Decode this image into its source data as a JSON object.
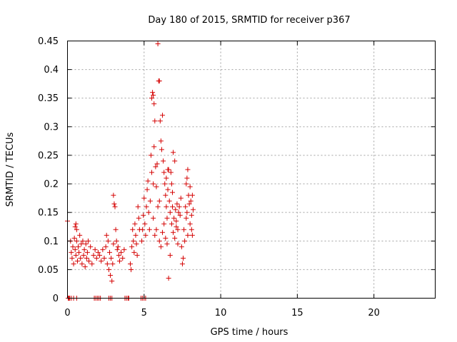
{
  "chart_data": {
    "type": "scatter",
    "title": "Day 180 of 2015, SRMTID for receiver p367",
    "xlabel": "GPS time / hours",
    "ylabel": "SRMTID / TECUs",
    "xlim": [
      0,
      24
    ],
    "ylim": [
      0,
      0.45
    ],
    "xticks": [
      0,
      5,
      10,
      15,
      20
    ],
    "xtick_labels": [
      "0",
      "5",
      "10",
      "15",
      "20"
    ],
    "yticks": [
      0,
      0.05,
      0.1,
      0.15,
      0.2,
      0.25,
      0.3,
      0.35,
      0.4,
      0.45
    ],
    "ytick_labels": [
      "0",
      "0.05",
      "0.1",
      "0.15",
      "0.2",
      "0.25",
      "0.3",
      "0.35",
      "0.4",
      "0.45"
    ],
    "grid": true,
    "marker": "+",
    "marker_color": "#d40000",
    "series": [
      {
        "name": "SRMTID",
        "points": [
          [
            0.0,
            0.135
          ],
          [
            0.05,
            0.0
          ],
          [
            0.1,
            0.0
          ],
          [
            0.15,
            0.0
          ],
          [
            0.25,
            0.0
          ],
          [
            0.4,
            0.0
          ],
          [
            0.6,
            0.0
          ],
          [
            0.2,
            0.1
          ],
          [
            0.25,
            0.08
          ],
          [
            0.3,
            0.07
          ],
          [
            0.35,
            0.09
          ],
          [
            0.4,
            0.06
          ],
          [
            0.45,
            0.105
          ],
          [
            0.5,
            0.085
          ],
          [
            0.55,
            0.075
          ],
          [
            0.6,
            0.12
          ],
          [
            0.55,
            0.13
          ],
          [
            0.5,
            0.125
          ],
          [
            0.6,
            0.1
          ],
          [
            0.65,
            0.065
          ],
          [
            0.7,
            0.09
          ],
          [
            0.75,
            0.08
          ],
          [
            0.8,
            0.11
          ],
          [
            0.85,
            0.07
          ],
          [
            0.9,
            0.095
          ],
          [
            0.95,
            0.06
          ],
          [
            1.0,
            0.1
          ],
          [
            1.05,
            0.075
          ],
          [
            1.1,
            0.085
          ],
          [
            1.15,
            0.055
          ],
          [
            1.2,
            0.095
          ],
          [
            1.25,
            0.07
          ],
          [
            1.3,
            0.08
          ],
          [
            1.35,
            0.1
          ],
          [
            1.4,
            0.065
          ],
          [
            1.5,
            0.09
          ],
          [
            1.6,
            0.06
          ],
          [
            1.7,
            0.075
          ],
          [
            1.8,
            0.085
          ],
          [
            1.9,
            0.07
          ],
          [
            2.0,
            0.08
          ],
          [
            1.75,
            0.0
          ],
          [
            1.85,
            0.0
          ],
          [
            1.95,
            0.0
          ],
          [
            2.05,
            0.0
          ],
          [
            2.15,
            0.0
          ],
          [
            2.1,
            0.075
          ],
          [
            2.2,
            0.065
          ],
          [
            2.3,
            0.085
          ],
          [
            2.4,
            0.07
          ],
          [
            2.5,
            0.09
          ],
          [
            2.55,
            0.11
          ],
          [
            2.6,
            0.06
          ],
          [
            2.65,
            0.1
          ],
          [
            2.7,
            0.05
          ],
          [
            2.75,
            0.08
          ],
          [
            2.8,
            0.04
          ],
          [
            2.85,
            0.07
          ],
          [
            2.9,
            0.03
          ],
          [
            2.95,
            0.06
          ],
          [
            3.0,
            0.095
          ],
          [
            2.7,
            0.0
          ],
          [
            2.8,
            0.0
          ],
          [
            2.9,
            0.0
          ],
          [
            3.0,
            0.18
          ],
          [
            3.05,
            0.165
          ],
          [
            3.1,
            0.16
          ],
          [
            3.15,
            0.12
          ],
          [
            3.2,
            0.1
          ],
          [
            3.25,
            0.085
          ],
          [
            3.3,
            0.09
          ],
          [
            3.35,
            0.075
          ],
          [
            3.4,
            0.065
          ],
          [
            3.5,
            0.08
          ],
          [
            3.6,
            0.07
          ],
          [
            3.7,
            0.085
          ],
          [
            3.75,
            0.0
          ],
          [
            3.85,
            0.0
          ],
          [
            3.95,
            0.0
          ],
          [
            4.0,
            0.0
          ],
          [
            4.1,
            0.06
          ],
          [
            4.15,
            0.05
          ],
          [
            4.2,
            0.09
          ],
          [
            4.25,
            0.12
          ],
          [
            4.3,
            0.1
          ],
          [
            4.35,
            0.08
          ],
          [
            4.4,
            0.13
          ],
          [
            4.45,
            0.11
          ],
          [
            4.5,
            0.095
          ],
          [
            4.55,
            0.075
          ],
          [
            4.6,
            0.16
          ],
          [
            4.65,
            0.14
          ],
          [
            4.7,
            0.12
          ],
          [
            4.8,
            0.0
          ],
          [
            4.9,
            0.0
          ],
          [
            5.0,
            0.0
          ],
          [
            5.1,
            0.0
          ],
          [
            4.85,
            0.1
          ],
          [
            4.9,
            0.12
          ],
          [
            4.95,
            0.145
          ],
          [
            5.0,
            0.175
          ],
          [
            5.05,
            0.13
          ],
          [
            5.1,
            0.11
          ],
          [
            5.15,
            0.16
          ],
          [
            5.2,
            0.19
          ],
          [
            5.25,
            0.205
          ],
          [
            5.3,
            0.15
          ],
          [
            5.35,
            0.12
          ],
          [
            5.4,
            0.17
          ],
          [
            5.45,
            0.25
          ],
          [
            5.5,
            0.22
          ],
          [
            5.5,
            0.35
          ],
          [
            5.55,
            0.36
          ],
          [
            5.6,
            0.355
          ],
          [
            5.65,
            0.34
          ],
          [
            5.7,
            0.31
          ],
          [
            5.65,
            0.265
          ],
          [
            5.6,
            0.2
          ],
          [
            5.75,
            0.23
          ],
          [
            5.8,
            0.195
          ],
          [
            5.85,
            0.235
          ],
          [
            5.9,
            0.445
          ],
          [
            5.95,
            0.38
          ],
          [
            6.0,
            0.38
          ],
          [
            6.05,
            0.31
          ],
          [
            6.1,
            0.275
          ],
          [
            6.15,
            0.26
          ],
          [
            6.2,
            0.32
          ],
          [
            6.25,
            0.24
          ],
          [
            6.3,
            0.22
          ],
          [
            6.35,
            0.2
          ],
          [
            6.4,
            0.18
          ],
          [
            6.45,
            0.16
          ],
          [
            6.5,
            0.14
          ],
          [
            6.55,
            0.19
          ],
          [
            6.6,
            0.225
          ],
          [
            6.65,
            0.17
          ],
          [
            6.7,
            0.15
          ],
          [
            6.75,
            0.22
          ],
          [
            6.8,
            0.13
          ],
          [
            6.85,
            0.16
          ],
          [
            6.9,
            0.255
          ],
          [
            6.95,
            0.14
          ],
          [
            7.0,
            0.24
          ],
          [
            7.05,
            0.155
          ],
          [
            7.1,
            0.135
          ],
          [
            7.15,
            0.165
          ],
          [
            7.2,
            0.12
          ],
          [
            7.25,
            0.15
          ],
          [
            7.3,
            0.16
          ],
          [
            7.35,
            0.145
          ],
          [
            7.4,
            0.175
          ],
          [
            7.45,
            0.09
          ],
          [
            7.5,
            0.06
          ],
          [
            7.55,
            0.07
          ],
          [
            7.6,
            0.12
          ],
          [
            7.65,
            0.1
          ],
          [
            7.7,
            0.16
          ],
          [
            7.75,
            0.14
          ],
          [
            7.8,
            0.15
          ],
          [
            7.85,
            0.11
          ],
          [
            7.9,
            0.18
          ],
          [
            7.95,
            0.165
          ],
          [
            8.0,
            0.13
          ],
          [
            8.05,
            0.17
          ],
          [
            8.1,
            0.145
          ],
          [
            8.15,
            0.18
          ],
          [
            6.6,
            0.035
          ],
          [
            6.7,
            0.075
          ],
          [
            6.0,
            0.1
          ],
          [
            6.1,
            0.09
          ],
          [
            6.2,
            0.115
          ],
          [
            6.3,
            0.13
          ],
          [
            6.4,
            0.105
          ],
          [
            6.5,
            0.095
          ],
          [
            6.9,
            0.115
          ],
          [
            7.0,
            0.105
          ],
          [
            7.1,
            0.125
          ],
          [
            7.2,
            0.095
          ],
          [
            5.8,
            0.12
          ],
          [
            5.7,
            0.11
          ],
          [
            5.6,
            0.14
          ],
          [
            5.9,
            0.16
          ],
          [
            6.0,
            0.17
          ],
          [
            6.8,
            0.2
          ],
          [
            6.85,
            0.185
          ],
          [
            7.75,
            0.2
          ],
          [
            7.8,
            0.21
          ],
          [
            7.85,
            0.225
          ],
          [
            8.0,
            0.195
          ],
          [
            8.1,
            0.12
          ],
          [
            8.15,
            0.11
          ],
          [
            8.2,
            0.155
          ],
          [
            6.45,
            0.21
          ],
          [
            6.55,
            0.225
          ]
        ]
      }
    ]
  }
}
